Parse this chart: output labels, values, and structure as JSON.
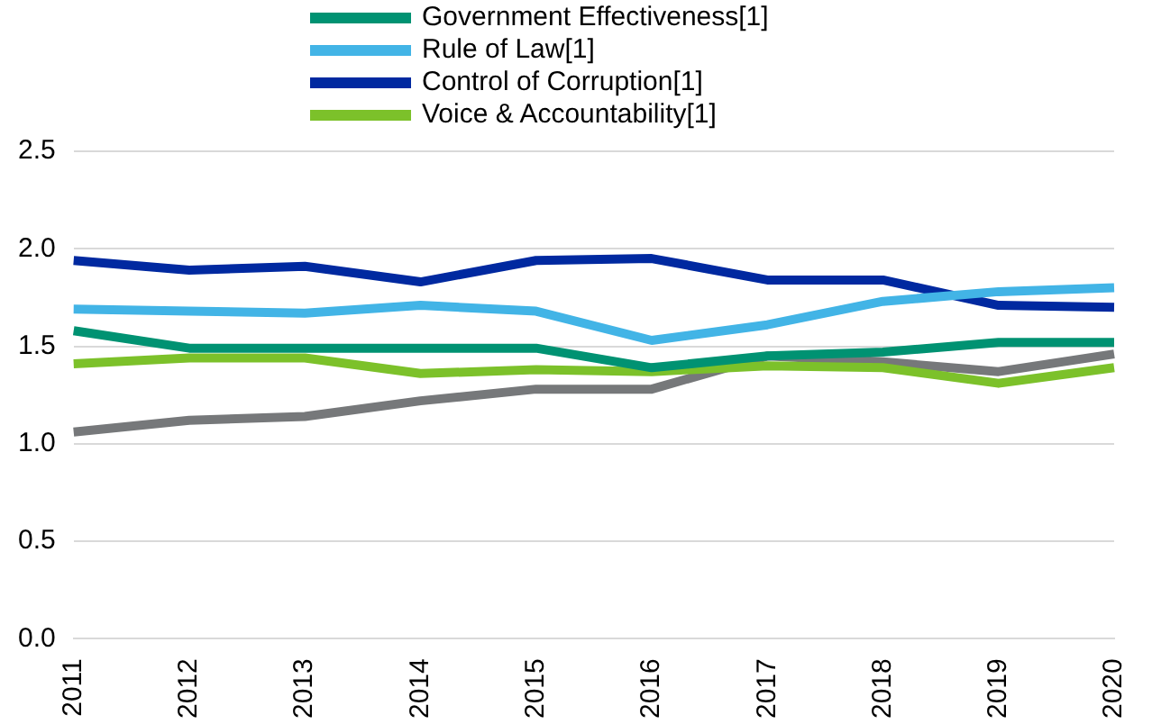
{
  "chart_data": {
    "type": "line",
    "categories": [
      "2011",
      "2012",
      "2013",
      "2014",
      "2015",
      "2016",
      "2017",
      "2018",
      "2019",
      "2020"
    ],
    "series": [
      {
        "name": "Government Effectiveness[1]",
        "color": "#009272",
        "values": [
          1.58,
          1.49,
          1.49,
          1.49,
          1.49,
          1.39,
          1.45,
          1.47,
          1.52,
          1.52
        ]
      },
      {
        "name": "Rule of Law[1]",
        "color": "#42b4e6",
        "values": [
          1.69,
          1.68,
          1.67,
          1.71,
          1.68,
          1.53,
          1.61,
          1.73,
          1.78,
          1.8
        ]
      },
      {
        "name": "Control of Corruption[1]",
        "color": "#0029a0",
        "values": [
          1.94,
          1.89,
          1.91,
          1.83,
          1.94,
          1.95,
          1.84,
          1.84,
          1.71,
          1.7
        ]
      },
      {
        "name": "Voice & Accountability[1]",
        "color": "#7cc12a",
        "values": [
          1.41,
          1.44,
          1.44,
          1.36,
          1.38,
          1.37,
          1.4,
          1.39,
          1.31,
          1.39
        ]
      },
      {
        "color": "#76787a",
        "values": [
          1.06,
          1.12,
          1.14,
          1.22,
          1.28,
          1.28,
          1.45,
          1.42,
          1.37,
          1.46
        ]
      }
    ],
    "ylim": [
      0,
      2.5
    ],
    "yticks": [
      {
        "value": 0,
        "label": "0.0"
      },
      {
        "value": 0.5,
        "label": "0.5"
      },
      {
        "value": 1,
        "label": "1.0"
      },
      {
        "value": 1.5,
        "label": "1.5"
      },
      {
        "value": 2,
        "label": "2.0"
      },
      {
        "value": 2.5,
        "label": "2.5"
      }
    ],
    "grid": "y",
    "legend": "top",
    "marker": "none",
    "line_style": "solid"
  }
}
